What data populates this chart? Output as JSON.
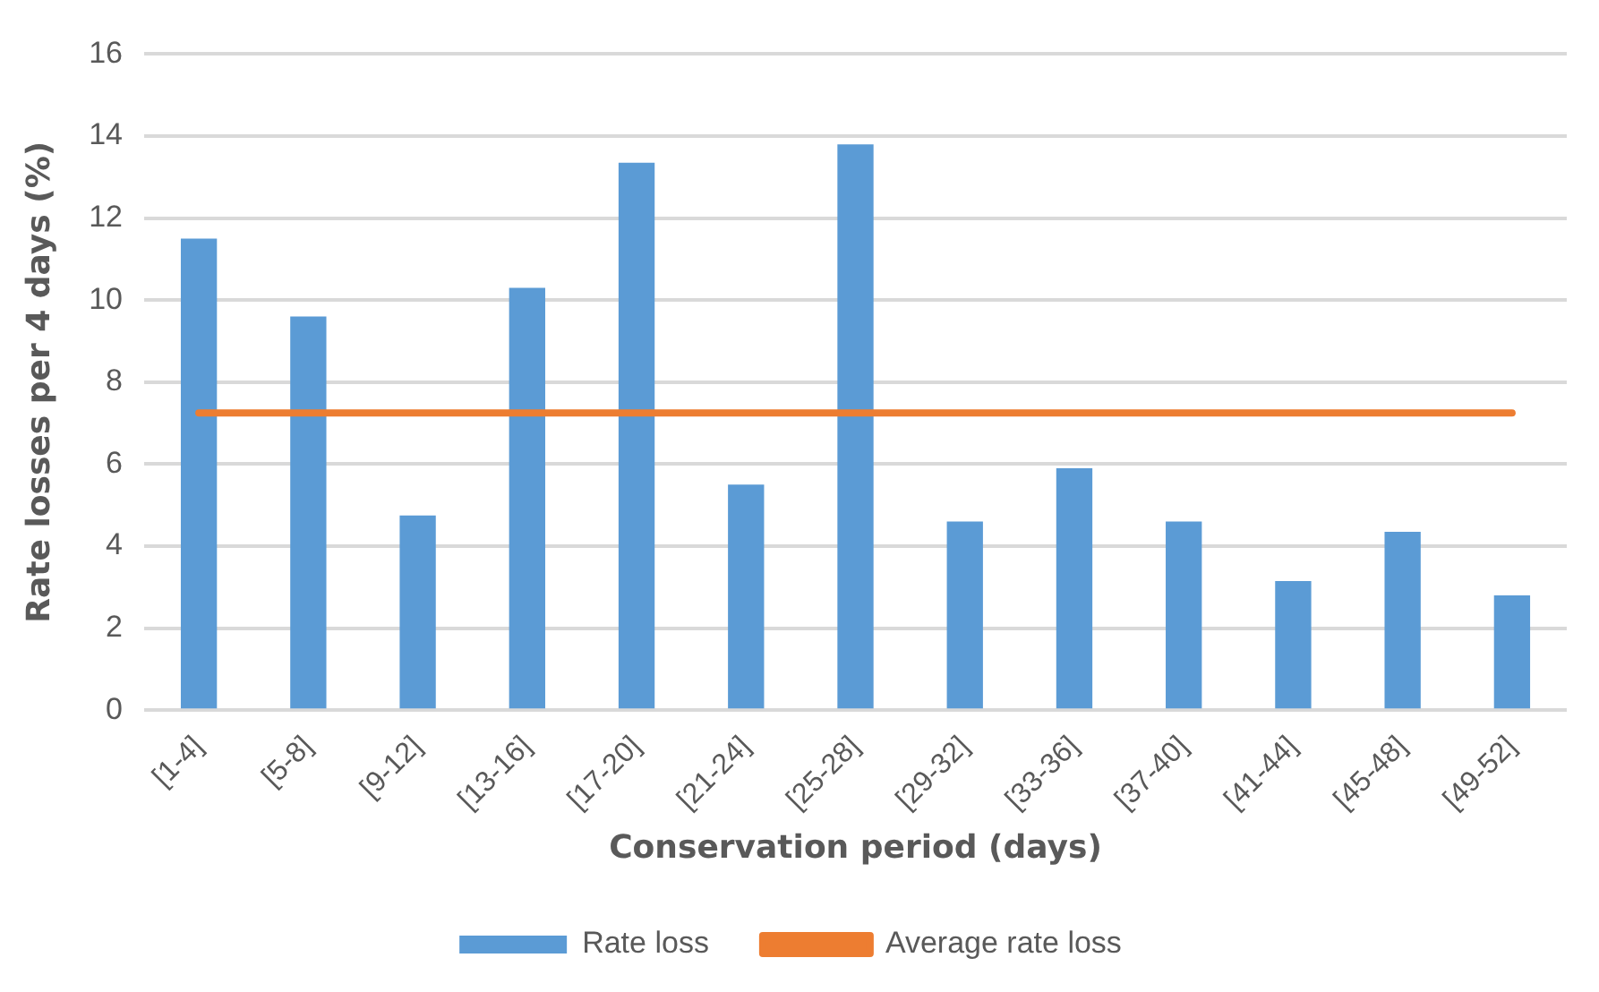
{
  "chart_data": {
    "type": "bar",
    "xlabel": "Conservation period (days)",
    "ylabel": "Rate losses per 4 days (%)",
    "categories": [
      "[1-4]",
      "[5-8]",
      "[9-12]",
      "[13-16]",
      "[17-20]",
      "[21-24]",
      "[25-28]",
      "[29-32]",
      "[33-36]",
      "[37-40]",
      "[41-44]",
      "[45-48]",
      "[49-52]"
    ],
    "series": [
      {
        "name": "Rate loss",
        "color": "#5b9bd5",
        "values": [
          11.5,
          9.6,
          4.75,
          10.3,
          13.35,
          5.5,
          13.8,
          4.6,
          5.9,
          4.6,
          3.15,
          4.35,
          2.8
        ]
      },
      {
        "name": "Average rate loss",
        "type": "line",
        "color": "#ed7d31",
        "values": [
          7.25,
          7.25,
          7.25,
          7.25,
          7.25,
          7.25,
          7.25,
          7.25,
          7.25,
          7.25,
          7.25,
          7.25,
          7.25
        ]
      }
    ],
    "ylim": [
      0,
      16
    ],
    "yticks": [
      0,
      2,
      4,
      6,
      8,
      10,
      12,
      14,
      16
    ],
    "grid": "y",
    "legend": "bottom",
    "marker": "none"
  }
}
